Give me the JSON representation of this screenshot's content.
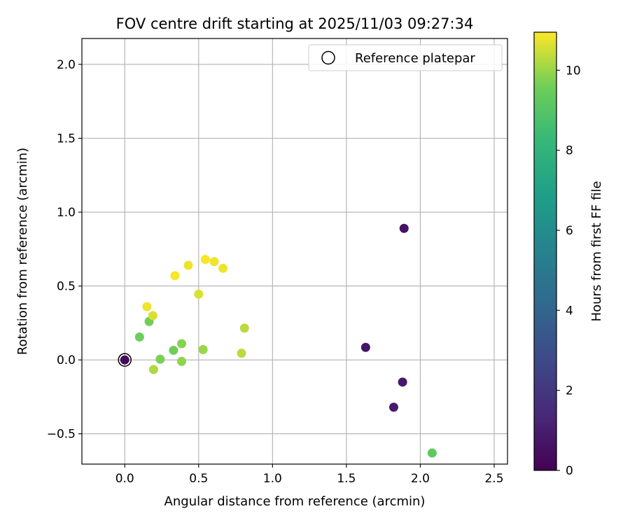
{
  "chart_data": {
    "type": "scatter",
    "title": "FOV centre drift starting at 2025/11/03 09:27:34",
    "xlabel": "Angular distance from reference (arcmin)",
    "ylabel": "Rotation from reference (arcmin)",
    "xlim": [
      -0.29,
      2.59
    ],
    "ylim": [
      -0.705,
      2.175
    ],
    "xticks": [
      0.0,
      0.5,
      1.0,
      1.5,
      2.0,
      2.5
    ],
    "xtick_labels": [
      "0.0",
      "0.5",
      "1.0",
      "1.5",
      "2.0",
      "2.5"
    ],
    "yticks": [
      -0.5,
      0.0,
      0.5,
      1.0,
      1.5,
      2.0
    ],
    "ytick_labels": [
      "−0.5",
      "0.0",
      "0.5",
      "1.0",
      "1.5",
      "2.0"
    ],
    "grid": true,
    "legend": {
      "position": "top-right",
      "entries": [
        "Reference platepar"
      ]
    },
    "reference_point": {
      "x": 0.0,
      "y": 0.0
    },
    "colorbar": {
      "label": "Hours from first FF file",
      "range": [
        0,
        10.95
      ],
      "ticks": [
        0,
        2,
        4,
        6,
        8,
        10
      ],
      "tick_labels": [
        "0",
        "2",
        "4",
        "6",
        "8",
        "10"
      ],
      "colormap": "viridis"
    },
    "points": [
      {
        "x": 0.0,
        "y": 0.0,
        "hours": 0.3
      },
      {
        "x": 1.89,
        "y": 0.89,
        "hours": 0.6
      },
      {
        "x": 1.63,
        "y": 0.085,
        "hours": 0.7
      },
      {
        "x": 1.88,
        "y": -0.15,
        "hours": 0.8
      },
      {
        "x": 1.82,
        "y": -0.32,
        "hours": 0.9
      },
      {
        "x": 2.08,
        "y": -0.63,
        "hours": 9.2
      },
      {
        "x": 0.1,
        "y": 0.155,
        "hours": 9.5
      },
      {
        "x": 0.165,
        "y": 0.26,
        "hours": 9.6
      },
      {
        "x": 0.24,
        "y": 0.005,
        "hours": 9.7
      },
      {
        "x": 0.33,
        "y": 0.065,
        "hours": 9.6
      },
      {
        "x": 0.385,
        "y": 0.11,
        "hours": 9.8
      },
      {
        "x": 0.385,
        "y": -0.01,
        "hours": 9.9
      },
      {
        "x": 0.53,
        "y": 0.07,
        "hours": 10.0
      },
      {
        "x": 0.195,
        "y": -0.065,
        "hours": 10.2
      },
      {
        "x": 0.79,
        "y": 0.045,
        "hours": 10.3
      },
      {
        "x": 0.81,
        "y": 0.215,
        "hours": 10.3
      },
      {
        "x": 0.19,
        "y": 0.3,
        "hours": 10.6
      },
      {
        "x": 0.15,
        "y": 0.36,
        "hours": 10.8
      },
      {
        "x": 0.5,
        "y": 0.445,
        "hours": 10.6
      },
      {
        "x": 0.34,
        "y": 0.57,
        "hours": 10.9
      },
      {
        "x": 0.43,
        "y": 0.64,
        "hours": 10.8
      },
      {
        "x": 0.545,
        "y": 0.68,
        "hours": 10.9
      },
      {
        "x": 0.605,
        "y": 0.665,
        "hours": 10.8
      },
      {
        "x": 0.665,
        "y": 0.62,
        "hours": 10.8
      }
    ]
  }
}
